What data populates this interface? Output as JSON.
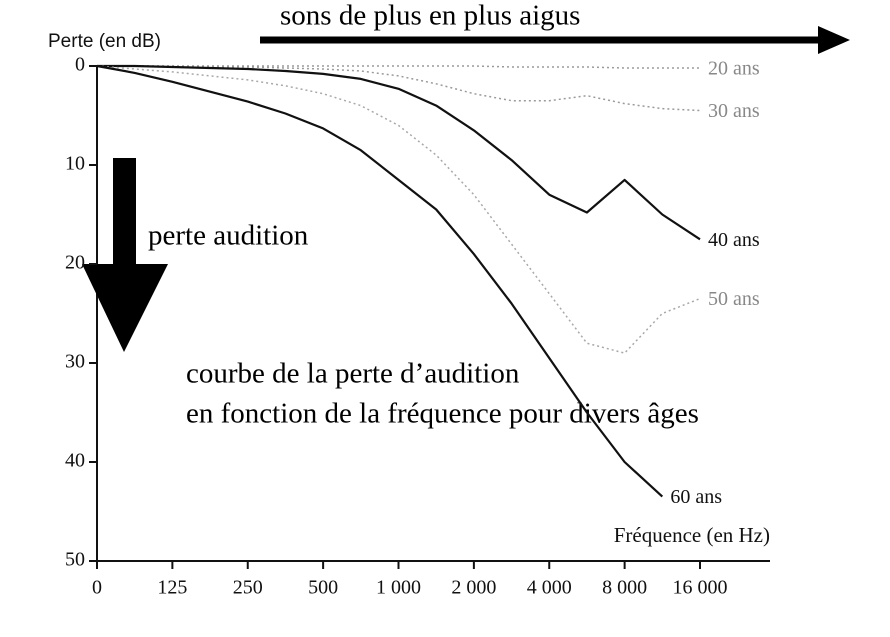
{
  "chart_data": {
    "type": "line",
    "y_label": "Perte (en dB)",
    "x_label": "Fréquence (en Hz)",
    "annotations": [
      "sons de plus en plus aigus",
      "perte audition",
      "courbe de la perte d’audition",
      "en fonction de la fréquence pour divers âges"
    ],
    "categories": [
      "0",
      null,
      "125",
      null,
      "250",
      null,
      "500",
      null,
      "1 000",
      null,
      "2 000",
      null,
      "4 000",
      null,
      "8 000",
      null,
      "16 000"
    ],
    "ylim": [
      0,
      50
    ],
    "y_inverted": true,
    "yticks": [
      0,
      10,
      20,
      30,
      40,
      50
    ],
    "series": [
      {
        "name": "20 ans",
        "color": "#9a9a9a",
        "style": "dotted",
        "values": [
          0,
          0,
          0,
          0,
          0,
          0,
          0,
          0,
          0,
          0,
          0,
          0.1,
          0.1,
          0.1,
          0.2,
          0.2,
          0.2
        ]
      },
      {
        "name": "30 ans",
        "color": "#9a9a9a",
        "style": "dotted",
        "values": [
          0,
          0,
          0,
          0.1,
          0.1,
          0.2,
          0.3,
          0.5,
          1,
          1.8,
          2.8,
          3.5,
          3.5,
          3,
          3.8,
          4.3,
          4.5
        ]
      },
      {
        "name": "40 ans",
        "color": "#111111",
        "style": "solid",
        "values": [
          0,
          0,
          0.1,
          0.2,
          0.3,
          0.5,
          0.8,
          1.3,
          2.3,
          4,
          6.5,
          9.5,
          13,
          14.8,
          11.5,
          15,
          17.5
        ]
      },
      {
        "name": "50 ans",
        "color": "#a8a8a8",
        "style": "dotted",
        "values": [
          0,
          0.3,
          0.6,
          1,
          1.4,
          2,
          2.8,
          4,
          6,
          9,
          13,
          18,
          23,
          28,
          29,
          25,
          23.5
        ]
      },
      {
        "name": "60 ans",
        "color": "#111111",
        "style": "solid",
        "values": [
          0,
          0.7,
          1.6,
          2.6,
          3.6,
          4.8,
          6.3,
          8.5,
          11.5,
          14.5,
          19,
          24,
          29.5,
          35,
          40,
          43.5,
          null
        ]
      }
    ]
  }
}
